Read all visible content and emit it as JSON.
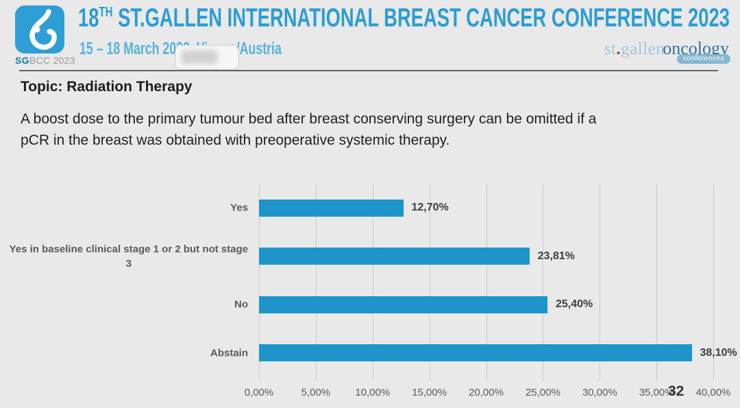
{
  "header": {
    "logo": {
      "caption_bold": "SG",
      "caption_rest": "BCC 2023"
    },
    "title_num": "18",
    "title_sup": "TH",
    "title_rest": " ST.GALLEN INTERNATIONAL BREAST CANCER CONFERENCE 2023",
    "subtitle": "15 – 18 March 2023  Vienna/Austria",
    "brand": {
      "st": "st",
      "dot": ".",
      "gallen": "gallen",
      "oncology": "oncology",
      "badge": "conferences"
    }
  },
  "slide": {
    "topic": "Topic: Radiation Therapy",
    "question": "A boost dose to the primary tumour bed after breast conserving surgery can be omitted if a\npCR in the breast was obtained with preoperative systemic therapy.",
    "page_number": "32"
  },
  "chart_data": {
    "type": "bar",
    "orientation": "horizontal",
    "title": "",
    "categories": [
      "Yes",
      "Yes in baseline clinical stage 1 or 2 but not stage\n3",
      "No",
      "Abstain"
    ],
    "values": [
      12.7,
      23.81,
      25.4,
      38.1
    ],
    "value_labels": [
      "12,70%",
      "23,81%",
      "25,40%",
      "38,10%"
    ],
    "x_ticks": [
      "0,00%",
      "5,00%",
      "10,00%",
      "15,00%",
      "20,00%",
      "25,00%",
      "30,00%",
      "35,00%",
      "40,00%"
    ],
    "xlim": [
      0,
      40
    ],
    "grid": true,
    "legend": false,
    "bar_color": "#1d95cb",
    "colors": {
      "background": "#e9e9e9",
      "title_blue": "#2b9dd5",
      "gridline": "#c9c9c9"
    }
  }
}
